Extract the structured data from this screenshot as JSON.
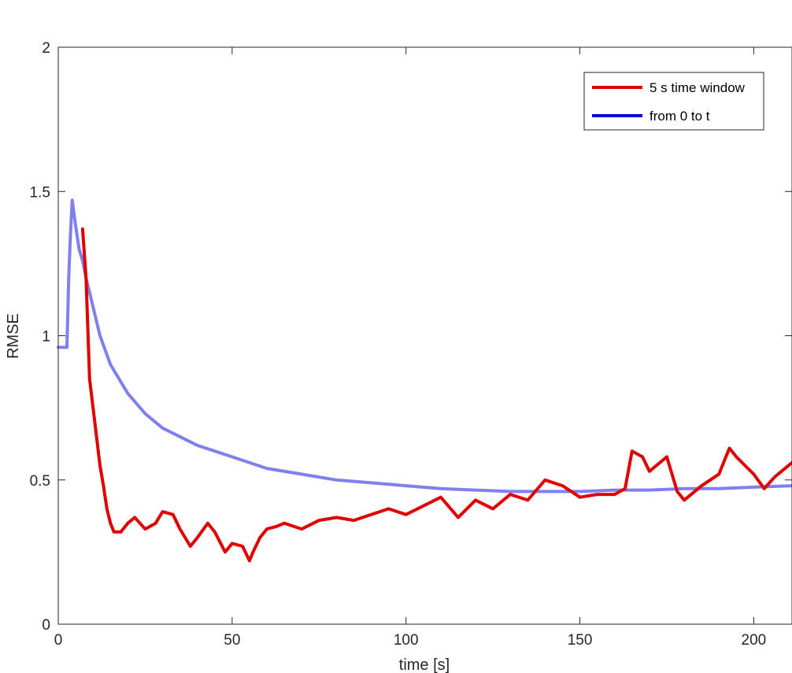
{
  "chart_data": {
    "type": "line",
    "xlabel": "time [s]",
    "ylabel": "RMSE",
    "xlim": [
      0,
      211
    ],
    "ylim": [
      0,
      2
    ],
    "xticks": [
      0,
      50,
      100,
      150,
      200
    ],
    "yticks": [
      0,
      0.5,
      1,
      1.5,
      2
    ],
    "xtick_labels": [
      "0",
      "50",
      "100",
      "150",
      "200"
    ],
    "ytick_labels": [
      "0",
      "0.5",
      "1",
      "1.5",
      "2"
    ],
    "grid": false,
    "legend_position": "top-right",
    "series": [
      {
        "name": "5 s time window",
        "color": "#e00000",
        "x": [
          7,
          8,
          9,
          10,
          11,
          12,
          13,
          14,
          15,
          16,
          18,
          20,
          22,
          25,
          28,
          30,
          33,
          35,
          38,
          40,
          43,
          45,
          48,
          50,
          53,
          55,
          56,
          58,
          60,
          63,
          65,
          70,
          75,
          80,
          85,
          90,
          95,
          100,
          105,
          110,
          115,
          120,
          125,
          130,
          135,
          140,
          145,
          150,
          155,
          160,
          163,
          165,
          168,
          170,
          175,
          178,
          180,
          185,
          190,
          193,
          195,
          200,
          203,
          206,
          209,
          211
        ],
        "y": [
          1.37,
          1.2,
          0.85,
          0.75,
          0.65,
          0.55,
          0.48,
          0.4,
          0.35,
          0.32,
          0.32,
          0.35,
          0.37,
          0.33,
          0.35,
          0.39,
          0.38,
          0.33,
          0.27,
          0.3,
          0.35,
          0.32,
          0.25,
          0.28,
          0.27,
          0.22,
          0.25,
          0.3,
          0.33,
          0.34,
          0.35,
          0.33,
          0.36,
          0.37,
          0.36,
          0.38,
          0.4,
          0.38,
          0.41,
          0.44,
          0.37,
          0.43,
          0.4,
          0.45,
          0.43,
          0.5,
          0.48,
          0.44,
          0.45,
          0.45,
          0.47,
          0.6,
          0.58,
          0.53,
          0.58,
          0.46,
          0.43,
          0.48,
          0.52,
          0.61,
          0.58,
          0.52,
          0.47,
          0.51,
          0.54,
          0.56
        ]
      },
      {
        "name": "from 0 to t",
        "color": "#0000e0",
        "x": [
          0,
          2.5,
          3,
          3.5,
          4,
          5,
          6,
          7,
          8,
          10,
          12,
          15,
          20,
          25,
          30,
          40,
          50,
          60,
          70,
          80,
          90,
          100,
          110,
          120,
          130,
          140,
          150,
          160,
          170,
          180,
          190,
          200,
          211
        ],
        "y": [
          0.96,
          0.96,
          1.2,
          1.35,
          1.47,
          1.38,
          1.3,
          1.26,
          1.2,
          1.1,
          1.0,
          0.9,
          0.8,
          0.73,
          0.68,
          0.62,
          0.58,
          0.54,
          0.52,
          0.5,
          0.49,
          0.48,
          0.47,
          0.465,
          0.46,
          0.46,
          0.46,
          0.465,
          0.465,
          0.47,
          0.47,
          0.475,
          0.48
        ]
      }
    ]
  }
}
